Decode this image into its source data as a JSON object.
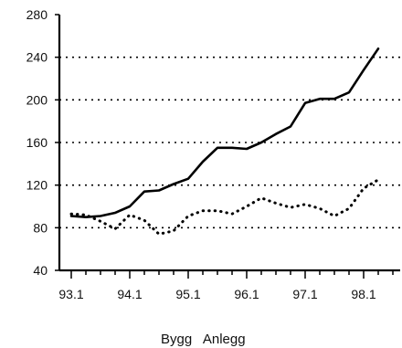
{
  "chart_data": {
    "type": "line",
    "title": "",
    "xlabel": "",
    "ylabel": "",
    "ylim": [
      40,
      280
    ],
    "y_ticks": [
      40,
      80,
      120,
      160,
      200,
      240,
      280
    ],
    "grid": "horizontal dotted at 80, 120, 160, 200, 240",
    "x_tick_labels": [
      "93.1",
      "94.1",
      "95.1",
      "96.1",
      "97.1",
      "98.1"
    ],
    "legend_text": "Bygg   Anlegg",
    "series": [
      {
        "style": "solid",
        "values": [
          91,
          90,
          91,
          94,
          100,
          114,
          115,
          121,
          126,
          142,
          155,
          155,
          154,
          160,
          168,
          175,
          197,
          201,
          201,
          207,
          228,
          248
        ]
      },
      {
        "style": "dotted",
        "values": [
          93,
          92,
          86,
          79,
          92,
          87,
          74,
          77,
          91,
          96,
          96,
          93,
          100,
          108,
          103,
          99,
          102,
          98,
          91,
          98,
          117,
          125
        ]
      }
    ]
  }
}
